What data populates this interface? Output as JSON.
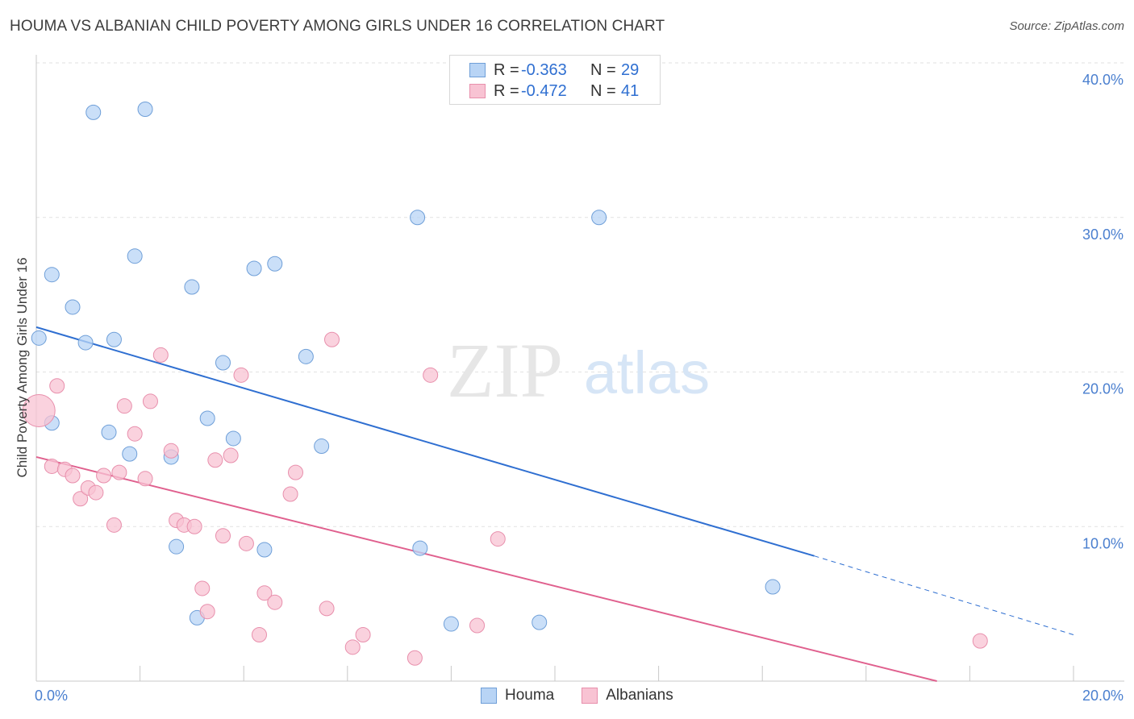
{
  "title": "HOUMA VS ALBANIAN CHILD POVERTY AMONG GIRLS UNDER 16 CORRELATION CHART",
  "source": "Source: ZipAtlas.com",
  "watermark": {
    "zip": "ZIP",
    "atlas": "atlas"
  },
  "legend": {
    "houma": {
      "r_label": "R =",
      "r_value": "-0.363",
      "n_label": "N =",
      "n_value": "29"
    },
    "albanians": {
      "r_label": "R =",
      "r_value": "-0.472",
      "n_label": "N =",
      "n_value": "41"
    }
  },
  "colors": {
    "houma_fill": "#b8d4f5",
    "houma_stroke": "#6f9fd8",
    "houma_line": "#2f6fd1",
    "albanian_fill": "#f8c3d3",
    "albanian_stroke": "#e88fac",
    "albanian_line": "#e0608e",
    "axis_text": "#4a7fcf",
    "grid": "#e2e2e2"
  },
  "chart_data": {
    "type": "scatter",
    "title": "HOUMA VS ALBANIAN CHILD POVERTY AMONG GIRLS UNDER 16 CORRELATION CHART",
    "xlabel": "",
    "ylabel": "Child Poverty Among Girls Under 16",
    "xlim": [
      0,
      20
    ],
    "ylim": [
      0,
      40
    ],
    "x_tick_labels": [
      "0.0%",
      "20.0%"
    ],
    "y_ticks": [
      10,
      20,
      30,
      40
    ],
    "y_tick_labels": [
      "10.0%",
      "20.0%",
      "30.0%",
      "40.0%"
    ],
    "grid": true,
    "series": [
      {
        "name": "Houma",
        "points": [
          [
            0.05,
            22.2
          ],
          [
            0.3,
            16.7
          ],
          [
            0.3,
            26.3
          ],
          [
            0.7,
            24.2
          ],
          [
            0.95,
            21.9
          ],
          [
            1.1,
            36.8
          ],
          [
            1.4,
            16.1
          ],
          [
            1.5,
            22.1
          ],
          [
            1.8,
            14.7
          ],
          [
            1.9,
            27.5
          ],
          [
            2.1,
            37.0
          ],
          [
            2.6,
            14.5
          ],
          [
            2.7,
            8.7
          ],
          [
            3.0,
            25.5
          ],
          [
            3.1,
            4.1
          ],
          [
            3.3,
            17.0
          ],
          [
            3.6,
            20.6
          ],
          [
            3.8,
            15.7
          ],
          [
            4.2,
            26.7
          ],
          [
            4.4,
            8.5
          ],
          [
            4.6,
            27.0
          ],
          [
            5.2,
            21.0
          ],
          [
            5.5,
            15.2
          ],
          [
            7.35,
            30.0
          ],
          [
            7.4,
            8.6
          ],
          [
            8.0,
            3.7
          ],
          [
            9.7,
            3.8
          ],
          [
            10.85,
            30.0
          ],
          [
            14.2,
            6.1
          ]
        ],
        "trend": {
          "x": [
            0,
            15
          ],
          "y": [
            22.9,
            8.1
          ],
          "dashed_to": [
            20,
            3.0
          ]
        }
      },
      {
        "name": "Albanians",
        "points": [
          [
            0.05,
            17.5
          ],
          [
            0.3,
            13.9
          ],
          [
            0.4,
            19.1
          ],
          [
            0.55,
            13.7
          ],
          [
            0.7,
            13.3
          ],
          [
            0.85,
            11.8
          ],
          [
            1.0,
            12.5
          ],
          [
            1.15,
            12.2
          ],
          [
            1.3,
            13.3
          ],
          [
            1.5,
            10.1
          ],
          [
            1.6,
            13.5
          ],
          [
            1.7,
            17.8
          ],
          [
            1.9,
            16.0
          ],
          [
            2.1,
            13.1
          ],
          [
            2.2,
            18.1
          ],
          [
            2.4,
            21.1
          ],
          [
            2.6,
            14.9
          ],
          [
            2.7,
            10.4
          ],
          [
            2.85,
            10.1
          ],
          [
            3.05,
            10.0
          ],
          [
            3.2,
            6.0
          ],
          [
            3.3,
            4.5
          ],
          [
            3.45,
            14.3
          ],
          [
            3.6,
            9.4
          ],
          [
            3.75,
            14.6
          ],
          [
            3.95,
            19.8
          ],
          [
            4.05,
            8.9
          ],
          [
            4.3,
            3.0
          ],
          [
            4.4,
            5.7
          ],
          [
            4.6,
            5.1
          ],
          [
            4.9,
            12.1
          ],
          [
            5.0,
            13.5
          ],
          [
            5.6,
            4.7
          ],
          [
            5.7,
            22.1
          ],
          [
            6.1,
            2.2
          ],
          [
            6.3,
            3.0
          ],
          [
            7.3,
            1.5
          ],
          [
            7.6,
            19.8
          ],
          [
            8.5,
            3.6
          ],
          [
            8.9,
            9.2
          ],
          [
            18.2,
            2.6
          ]
        ],
        "big_points": [
          [
            0.05,
            17.5
          ]
        ],
        "trend": {
          "x": [
            0,
            20
          ],
          "y": [
            14.5,
            -2.2
          ]
        }
      }
    ]
  },
  "bottom_legend": [
    "Houma",
    "Albanians"
  ]
}
